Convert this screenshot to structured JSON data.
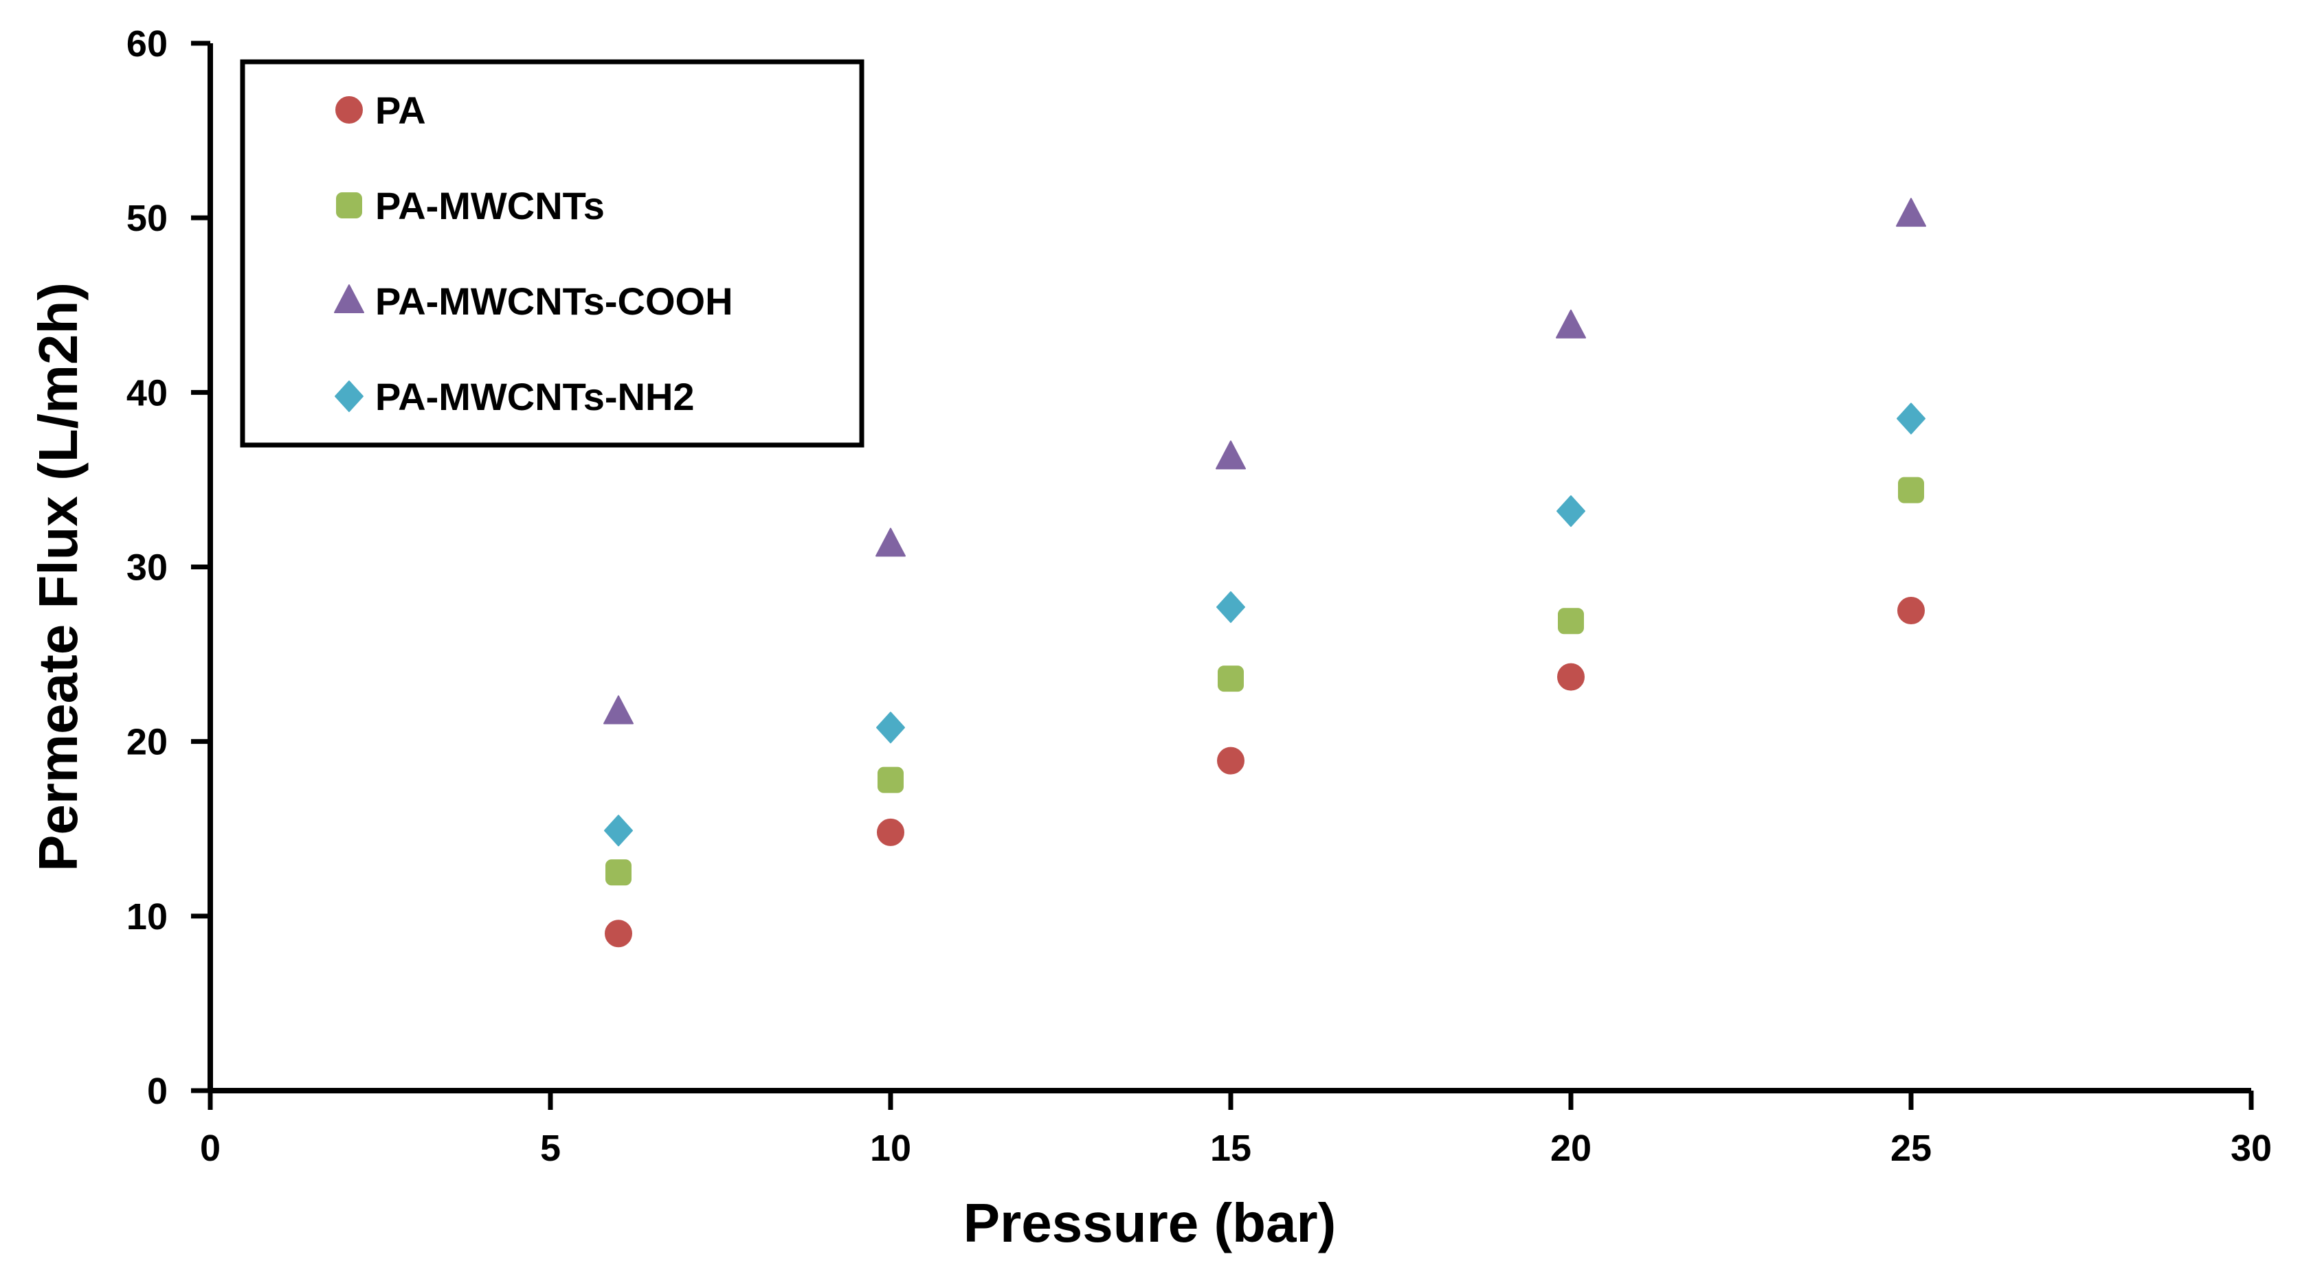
{
  "chart_data": {
    "type": "scatter",
    "title": "",
    "xlabel": "Pressure (bar)",
    "ylabel": "Permeate Flux  (L/m2h)",
    "xlim": [
      0,
      30
    ],
    "ylim": [
      0,
      60
    ],
    "xticks": [
      0,
      5,
      10,
      15,
      20,
      25,
      30
    ],
    "yticks": [
      0,
      10,
      20,
      30,
      40,
      50,
      60
    ],
    "grid": false,
    "legend_position": "top-left",
    "x": [
      6,
      10,
      15,
      20,
      25
    ],
    "series": [
      {
        "name": "PA",
        "marker": "circle",
        "color": "#c0504d",
        "values": [
          9,
          14.8,
          18.9,
          23.7,
          27.5
        ]
      },
      {
        "name": "PA-MWCNTs",
        "marker": "square",
        "color": "#9bbb59",
        "values": [
          12.5,
          17.8,
          23.6,
          26.9,
          34.4
        ]
      },
      {
        "name": "PA-MWCNTs-COOH",
        "marker": "triangle",
        "color": "#8064a2",
        "values": [
          21.7,
          31.3,
          36.3,
          43.8,
          50.2
        ]
      },
      {
        "name": "PA-MWCNTs-NH2",
        "marker": "diamond",
        "color": "#4bacc6",
        "values": [
          14.9,
          20.8,
          27.7,
          33.2,
          38.5
        ]
      }
    ]
  }
}
